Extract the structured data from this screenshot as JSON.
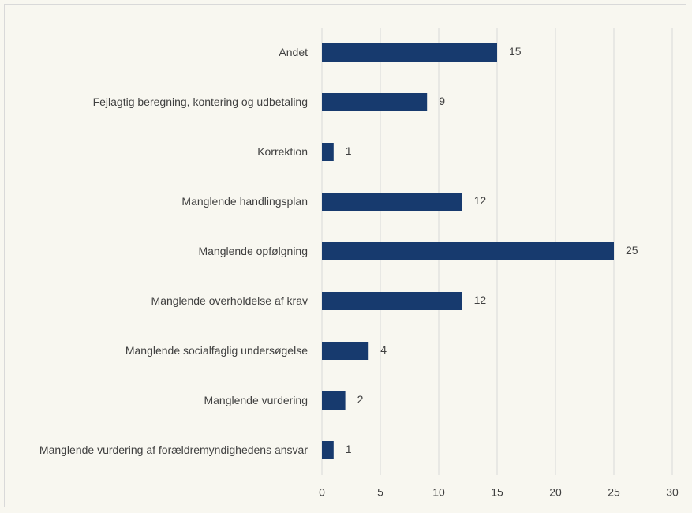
{
  "chart_data": {
    "type": "bar",
    "orientation": "horizontal",
    "categories": [
      "Andet",
      "Fejlagtig beregning, kontering og udbetaling",
      "Korrektion",
      "Manglende handlingsplan",
      "Manglende opfølgning",
      "Manglende overholdelse af krav",
      "Manglende socialfaglig undersøgelse",
      "Manglende vurdering",
      "Manglende vurdering af forældremyndighedens ansvar"
    ],
    "values": [
      15,
      9,
      1,
      12,
      25,
      12,
      4,
      2,
      1
    ],
    "color": "#173a6e",
    "xlim": [
      0,
      30
    ],
    "xticks": [
      0,
      5,
      10,
      15,
      20,
      25,
      30
    ],
    "grid": true
  }
}
